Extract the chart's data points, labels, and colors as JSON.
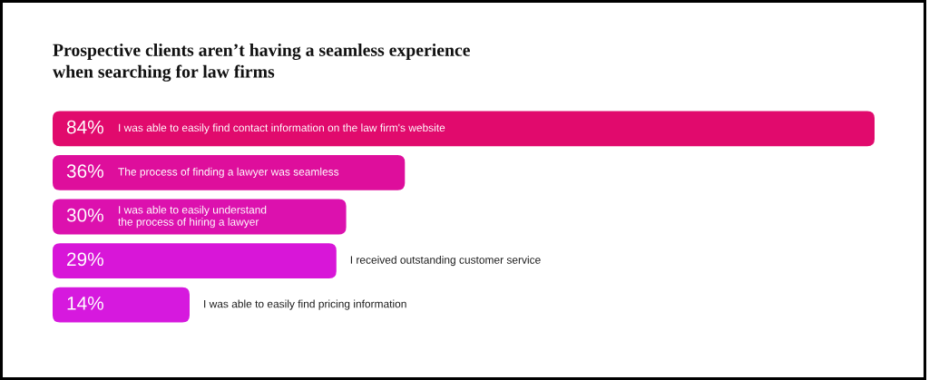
{
  "chart_data": {
    "type": "bar",
    "orientation": "horizontal",
    "title": "Prospective clients aren’t having a seamless experience\nwhen searching for law firms",
    "categories": [
      "I was able to easily find contact information on the law firm's website",
      "The process of finding a lawyer was seamless",
      "I was able to easily understand\nthe process of hiring a lawyer",
      "I received outstanding customer service",
      "I was able to easily find pricing information"
    ],
    "values": [
      84,
      36,
      30,
      29,
      14
    ],
    "value_labels": [
      "84%",
      "36%",
      "30%",
      "29%",
      "14%"
    ],
    "colors": [
      "#e10a6d",
      "#de0e9c",
      "#dc11ae",
      "#d816d8",
      "#d619de"
    ],
    "tick_labels": false
  }
}
